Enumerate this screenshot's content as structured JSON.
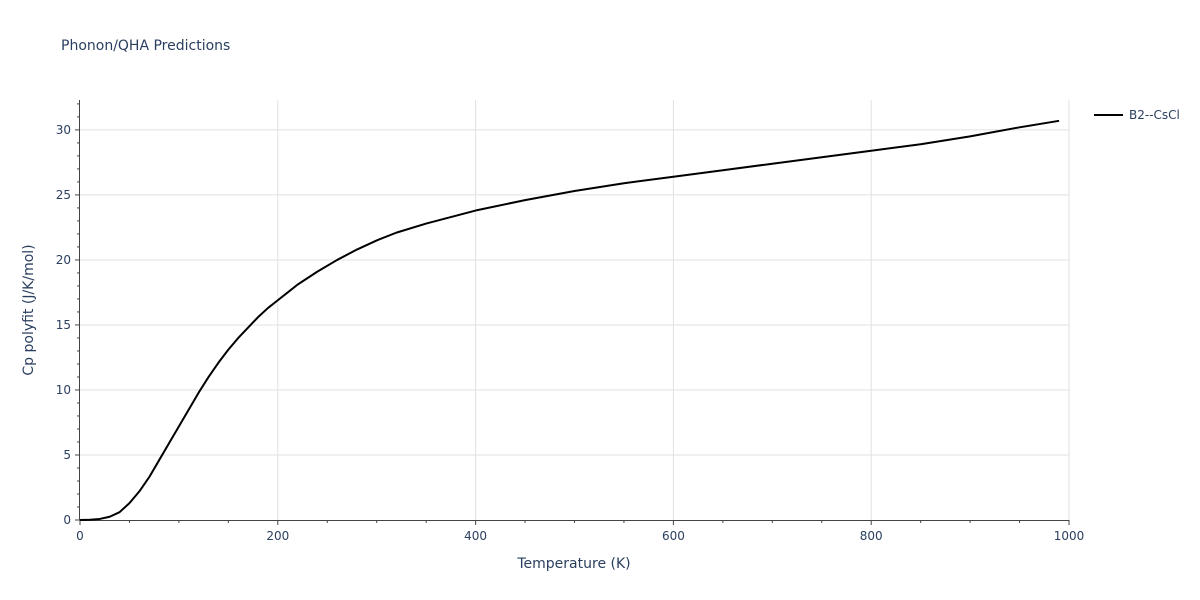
{
  "chart_data": {
    "type": "line",
    "title": "Phonon/QHA Predictions",
    "xlabel": "Temperature (K)",
    "ylabel": "Cp polyfit (J/K/mol)",
    "xlim": [
      0,
      1000
    ],
    "ylim": [
      0,
      32.3
    ],
    "x_ticks": [
      0,
      200,
      400,
      600,
      800,
      1000
    ],
    "y_ticks": [
      0,
      5,
      10,
      15,
      20,
      25,
      30
    ],
    "x_tick_labels": [
      "0",
      "200",
      "400",
      "600",
      "800",
      "1000"
    ],
    "y_tick_labels": [
      "0",
      "5",
      "10",
      "15",
      "20",
      "25",
      "30"
    ],
    "grid": true,
    "legend_position": "top-right",
    "series": [
      {
        "name": "B2--CsCl",
        "color": "#000000",
        "x": [
          0,
          10,
          20,
          30,
          40,
          50,
          60,
          70,
          80,
          90,
          100,
          110,
          120,
          130,
          140,
          150,
          160,
          170,
          180,
          190,
          200,
          210,
          220,
          240,
          260,
          280,
          300,
          320,
          350,
          400,
          450,
          500,
          550,
          600,
          650,
          700,
          750,
          800,
          850,
          900,
          950,
          990
        ],
        "y": [
          0,
          0.02,
          0.08,
          0.25,
          0.6,
          1.3,
          2.2,
          3.3,
          4.6,
          5.9,
          7.2,
          8.5,
          9.8,
          11.0,
          12.1,
          13.1,
          14.0,
          14.8,
          15.6,
          16.3,
          16.9,
          17.5,
          18.1,
          19.1,
          20.0,
          20.8,
          21.5,
          22.1,
          22.8,
          23.8,
          24.6,
          25.3,
          25.9,
          26.4,
          26.9,
          27.4,
          27.9,
          28.4,
          28.9,
          29.5,
          30.2,
          30.7
        ]
      }
    ]
  }
}
